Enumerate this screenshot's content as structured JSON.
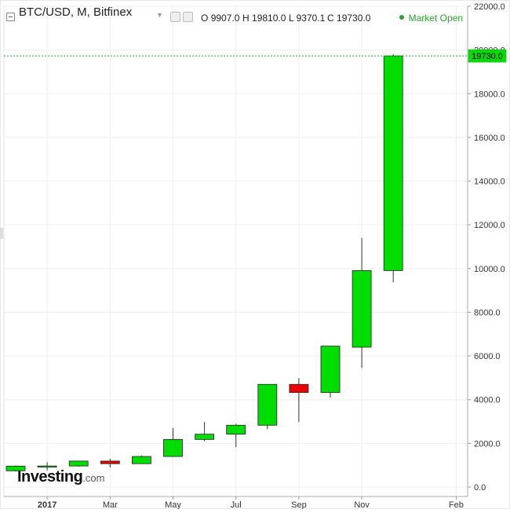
{
  "header": {
    "title": "BTC/USD, M, Bitfinex",
    "ohlc": [
      {
        "k": "O",
        "v": "9907.0"
      },
      {
        "k": "H",
        "v": "19810.0"
      },
      {
        "k": "L",
        "v": "9370.1"
      },
      {
        "k": "C",
        "v": "19730.0"
      }
    ],
    "status": "Market Open"
  },
  "brand": {
    "name": "Investing",
    "tld": ".com"
  },
  "price_tag": "19730.0",
  "colors": {
    "up": "#00dd00",
    "down": "#ee0000",
    "status": "#2e9e2e",
    "last_price_line": "#22aa22"
  },
  "chart_data": {
    "type": "candlestick",
    "ylim": [
      0,
      22000
    ],
    "yticks": [
      0,
      2000,
      4000,
      6000,
      8000,
      10000,
      12000,
      14000,
      16000,
      18000,
      20000,
      22000
    ],
    "ytick_labels": [
      "0.0",
      "2000.0",
      "4000.0",
      "6000.0",
      "8000.0",
      "10000.0",
      "12000.0",
      "14000.0",
      "16000.0",
      "18000.0",
      "20000.0",
      "22000.0"
    ],
    "xticks": [
      {
        "label": "2017",
        "index": 1
      },
      {
        "label": "Mar",
        "index": 3
      },
      {
        "label": "May",
        "index": 5
      },
      {
        "label": "Jul",
        "index": 7
      },
      {
        "label": "Sep",
        "index": 9
      },
      {
        "label": "Nov",
        "index": 11
      },
      {
        "label": "Feb",
        "index": 14
      }
    ],
    "last_price": 19730,
    "candles": [
      {
        "month": "2016-12",
        "open": 745,
        "high": 980,
        "low": 720,
        "close": 960
      },
      {
        "month": "2017-01",
        "open": 960,
        "high": 1140,
        "low": 760,
        "close": 965
      },
      {
        "month": "2017-02",
        "open": 965,
        "high": 1200,
        "low": 930,
        "close": 1190
      },
      {
        "month": "2017-03",
        "open": 1190,
        "high": 1300,
        "low": 900,
        "close": 1070
      },
      {
        "month": "2017-04",
        "open": 1070,
        "high": 1450,
        "low": 1060,
        "close": 1400
      },
      {
        "month": "2017-05",
        "open": 1400,
        "high": 2700,
        "low": 1380,
        "close": 2180
      },
      {
        "month": "2017-06",
        "open": 2180,
        "high": 2980,
        "low": 2100,
        "close": 2420
      },
      {
        "month": "2017-07",
        "open": 2420,
        "high": 2900,
        "low": 1830,
        "close": 2830
      },
      {
        "month": "2017-08",
        "open": 2830,
        "high": 4700,
        "low": 2650,
        "close": 4700
      },
      {
        "month": "2017-09",
        "open": 4700,
        "high": 4980,
        "low": 2980,
        "close": 4330
      },
      {
        "month": "2017-10",
        "open": 4330,
        "high": 6450,
        "low": 4100,
        "close": 6450
      },
      {
        "month": "2017-11",
        "open": 6400,
        "high": 11400,
        "low": 5450,
        "close": 9907
      },
      {
        "month": "2017-12",
        "open": 9907,
        "high": 19810,
        "low": 9370.1,
        "close": 19730
      }
    ]
  }
}
